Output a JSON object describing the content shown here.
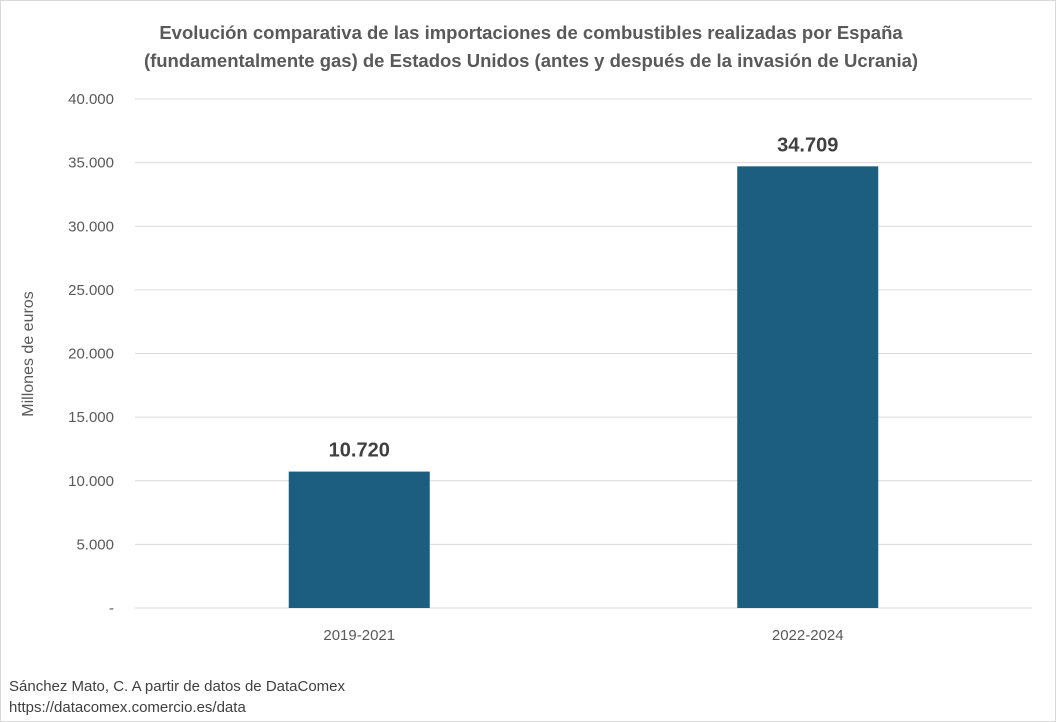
{
  "chart_data": {
    "type": "bar",
    "title_lines": [
      "Evolución comparativa de las importaciones de combustibles realizadas por España",
      "(fundamentalmente gas) de Estados Unidos (antes y después de la invasión de Ucrania)"
    ],
    "categories": [
      "2019-2021",
      "2022-2024"
    ],
    "values": [
      10720,
      34709
    ],
    "value_labels": [
      "10.720",
      "34.709"
    ],
    "ylabel": "Millones de euros",
    "xlabel": "",
    "ylim": [
      0,
      40000
    ],
    "y_ticks": [
      0,
      5000,
      10000,
      15000,
      20000,
      25000,
      30000,
      35000,
      40000
    ],
    "y_tick_labels": [
      "-",
      "5.000",
      "10.000",
      "15.000",
      "20.000",
      "25.000",
      "30.000",
      "35.000",
      "40.000"
    ],
    "grid": true,
    "legend": "none",
    "bar_color": "#1b5e80",
    "grid_color": "#d9d9d9"
  },
  "source": {
    "line1": "Sánchez Mato, C.   A partir de datos de DataComex",
    "line2": "https://datacomex.comercio.es/data"
  }
}
